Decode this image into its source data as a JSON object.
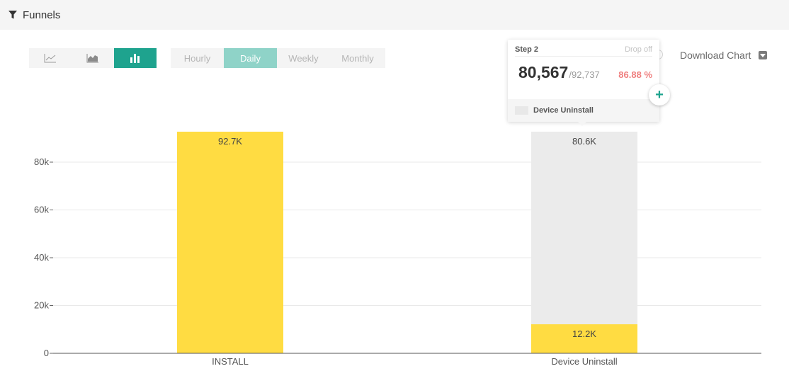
{
  "header": {
    "title": "Funnels"
  },
  "toolbar": {
    "chart_types": [
      "line-chart-icon",
      "area-chart-icon",
      "bar-chart-icon"
    ],
    "active_chart_type": 2,
    "periods": [
      "Hourly",
      "Daily",
      "Weekly",
      "Monthly"
    ],
    "active_period": "Daily"
  },
  "download": {
    "label": "Download Chart"
  },
  "tooltip": {
    "step": "Step 2",
    "dropoff_label": "Drop off",
    "value": "80,567",
    "total": "/92,737",
    "percent": "86.88 %",
    "series": "Device Uninstall"
  },
  "colors": {
    "accent": "#1ea38e",
    "accent_light": "#8fd3c8",
    "bar": "#ffdc42",
    "dropoff": "#ebebeb",
    "percent": "#ef7f7f"
  },
  "chart_data": {
    "type": "bar",
    "stacked": true,
    "categories": [
      "INSTALL",
      "Device Uninstall"
    ],
    "series": [
      {
        "name": "Device Uninstall",
        "values": [
          92737,
          12170
        ],
        "labels": [
          "92.7K",
          "12.2K"
        ],
        "color": "#ffdc42"
      },
      {
        "name": "Drop off",
        "values": [
          0,
          80567
        ],
        "labels": [
          "",
          "80.6K"
        ],
        "color": "#ebebeb"
      }
    ],
    "yticks": [
      0,
      20000,
      40000,
      60000,
      80000
    ],
    "ytick_labels": [
      "0",
      "20k",
      "40k",
      "60k",
      "80k"
    ],
    "ylim": [
      0,
      92737
    ],
    "grid": true
  }
}
